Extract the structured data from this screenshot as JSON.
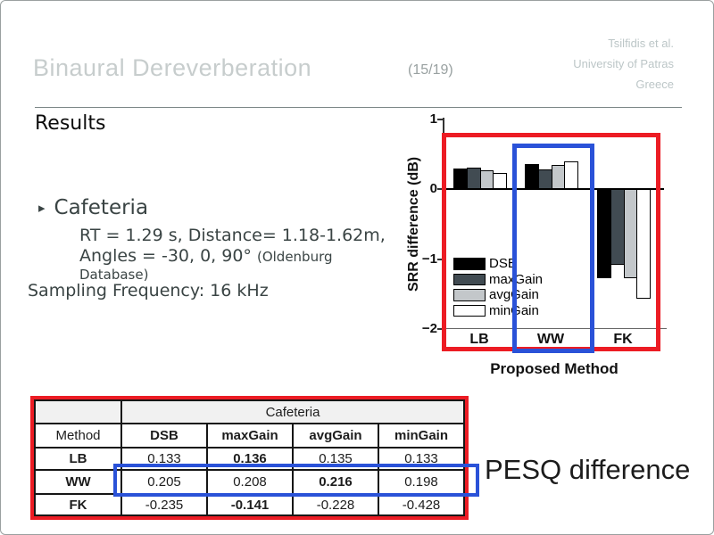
{
  "slide": {
    "title": "Binaural Dereverberation",
    "page_num": "(15/19)",
    "affiliation": [
      "Tsilfidis et al.",
      "University of Patras",
      "Greece"
    ],
    "section_heading": "Results",
    "bullet": {
      "marker": "▸",
      "heading": "Cafeteria",
      "detail_line1": "RT = 1.29 s, Distance= 1.18-1.62m,",
      "detail_line2": "Angles = -30, 0, 90° ",
      "detail_line2_small": "(Oldenburg",
      "detail_line3_small": "Database)",
      "sampling": "Sampling Frequency: 16 kHz"
    },
    "pesq_label": "PESQ difference"
  },
  "colors": {
    "accent_red": "#ec1c24",
    "accent_blue": "#2a52d8",
    "bar_black": "#000000",
    "bar_dark_gray": "#414b52",
    "bar_light_gray": "#c3c7ca",
    "bar_white": "#ffffff"
  },
  "chart_data": {
    "type": "bar",
    "title": "",
    "ylabel": "SRR difference (dB)",
    "xlabel": "Proposed Method",
    "ylim": [
      -2,
      1
    ],
    "yticks": [
      1,
      0,
      -1,
      -2
    ],
    "grid": false,
    "legend_position": "lower-left",
    "categories": [
      "LB",
      "WW",
      "FK"
    ],
    "series": [
      {
        "name": "DSB",
        "color": "#000000",
        "values": [
          0.29,
          0.36,
          -1.28
        ]
      },
      {
        "name": "maxGain",
        "color": "#414b52",
        "values": [
          0.31,
          0.28,
          -1.08
        ]
      },
      {
        "name": "avgGain",
        "color": "#c3c7ca",
        "values": [
          0.27,
          0.35,
          -1.27
        ]
      },
      {
        "name": "minGain",
        "color": "#ffffff",
        "values": [
          0.23,
          0.39,
          -1.57
        ]
      }
    ],
    "annotations": [
      "red box framing all three category groups",
      "blue box framing the WW group"
    ]
  },
  "table": {
    "group_header": "Cafeteria",
    "columns": [
      "Method",
      "DSB",
      "maxGain",
      "avgGain",
      "minGain"
    ],
    "rows": [
      {
        "label": "LB",
        "values": [
          "0.133",
          "0.136",
          "0.135",
          "0.133"
        ],
        "bold_index": 1
      },
      {
        "label": "WW",
        "values": [
          "0.205",
          "0.208",
          "0.216",
          "0.198"
        ],
        "bold_index": 2
      },
      {
        "label": "FK",
        "values": [
          "-0.235",
          "-0.141",
          "-0.228",
          "-0.428"
        ],
        "bold_index": 1
      }
    ],
    "highlight_row": "WW"
  }
}
